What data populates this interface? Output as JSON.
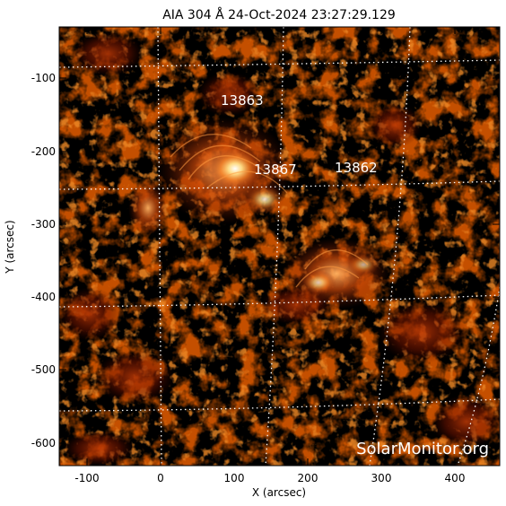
{
  "title": "AIA 304 Å 24-Oct-2024 23:27:29.129",
  "axes": {
    "x_label": "X (arcsec)",
    "y_label": "Y (arcsec)",
    "x_ticks": [
      "-100",
      "0",
      "100",
      "200",
      "300",
      "400"
    ],
    "y_ticks": [
      "-100",
      "-200",
      "-300",
      "-400",
      "-500",
      "-600"
    ]
  },
  "active_regions": [
    {
      "label": "13863"
    },
    {
      "label": "13867"
    },
    {
      "label": "13862"
    }
  ],
  "watermark": "SolarMonitor.org",
  "colors": {
    "colormap": [
      "#000000",
      "#4a0600",
      "#8a1800",
      "#c03a05",
      "#f07a20",
      "#ffd070",
      "#ffffff"
    ],
    "grid": "#ffffff"
  }
}
